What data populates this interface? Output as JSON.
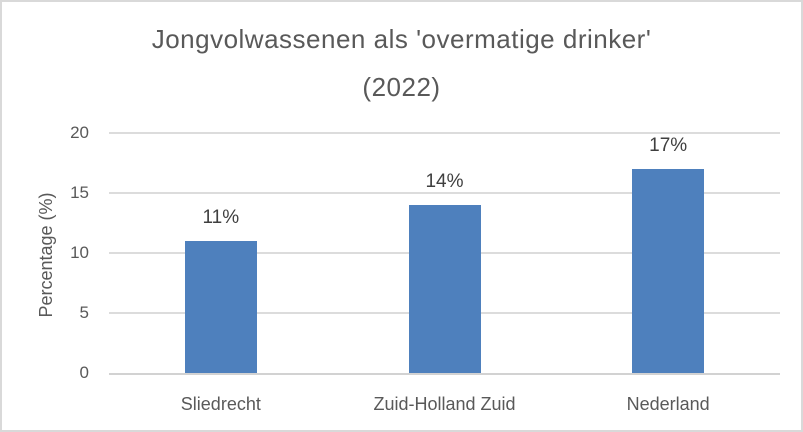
{
  "chart": {
    "title_line1": "Jongvolwassenen als 'overmatige drinker'",
    "title_line2": "(2022)"
  },
  "chart_data": {
    "type": "bar",
    "title": "Jongvolwassenen als 'overmatige drinker' (2022)",
    "categories": [
      "Sliedrecht",
      "Zuid-Holland Zuid",
      "Nederland"
    ],
    "values": [
      11,
      14,
      17
    ],
    "data_labels": [
      "11%",
      "14%",
      "17%"
    ],
    "xlabel": "",
    "ylabel": "Percentage (%)",
    "ylim": [
      0,
      20
    ],
    "yticks": [
      0,
      5,
      10,
      15,
      20
    ],
    "grid": "horizontal",
    "legend": "none",
    "colors": {
      "bar": "#4e80bd",
      "title_text": "#595959",
      "axis_text": "#595959",
      "data_label_text": "#3f3f3f",
      "gridline": "#dcdcdc",
      "axis_line": "#d2d2d2",
      "border": "#d9d9d9",
      "background": "#ffffff"
    }
  }
}
